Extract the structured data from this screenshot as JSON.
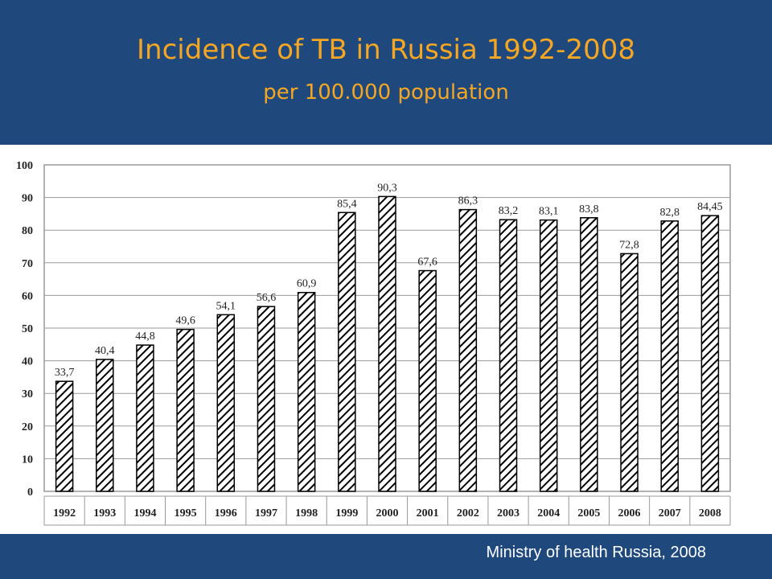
{
  "slide": {
    "title": "Incidence of TB in Russia 1992-2008",
    "subtitle": "per 100.000 population",
    "source": "Ministry of health Russia, 2008"
  },
  "colors": {
    "background": "#1f497d",
    "title": "#f5a623",
    "bar_stroke": "#000000",
    "plot_area": "#ffffff"
  },
  "chart_data": {
    "type": "bar",
    "pattern": "diagonal-hatch",
    "grid": true,
    "legend": "none",
    "ylim": [
      0,
      100
    ],
    "yticks": [
      0,
      10,
      20,
      30,
      40,
      50,
      60,
      70,
      80,
      90,
      100
    ],
    "categories": [
      "1992",
      "1993",
      "1994",
      "1995",
      "1996",
      "1997",
      "1998",
      "1999",
      "2000",
      "2001",
      "2002",
      "2003",
      "2004",
      "2005",
      "2006",
      "2007",
      "2008"
    ],
    "values": [
      33.7,
      40.4,
      44.8,
      49.6,
      54.1,
      56.6,
      60.9,
      85.4,
      90.3,
      67.6,
      86.3,
      83.2,
      83.1,
      83.8,
      72.8,
      82.8,
      84.45
    ],
    "data_labels": [
      "33,7",
      "40,4",
      "44,8",
      "49,6",
      "54,1",
      "56,6",
      "60,9",
      "85,4",
      "90,3",
      "67,6",
      "86,3",
      "83,2",
      "83,1",
      "83,8",
      "72,8",
      "82,8",
      "84,45"
    ]
  }
}
